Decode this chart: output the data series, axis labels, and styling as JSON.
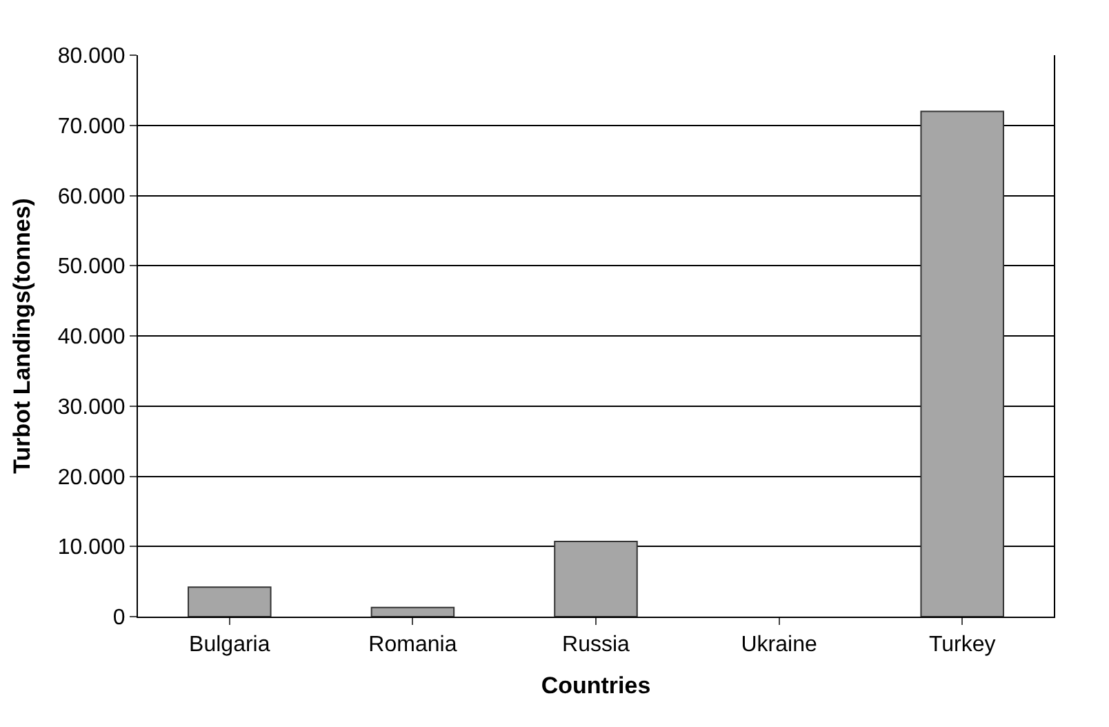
{
  "chart_data": {
    "type": "bar",
    "xlabel": "Countries",
    "ylabel": "Turbot Landings(tonnes)",
    "categories": [
      "Bulgaria",
      "Romania",
      "Russia",
      "Ukraine",
      "Turkey"
    ],
    "values": [
      4200,
      1300,
      10700,
      null,
      72000
    ],
    "color": "#a6a6a6",
    "ylim": [
      0,
      80000
    ],
    "yticks": [
      {
        "value": 0,
        "label": "0"
      },
      {
        "value": 10000,
        "label": "10.000"
      },
      {
        "value": 20000,
        "label": "20.000"
      },
      {
        "value": 30000,
        "label": "30.000"
      },
      {
        "value": 40000,
        "label": "40.000"
      },
      {
        "value": 50000,
        "label": "50.000"
      },
      {
        "value": 60000,
        "label": "60.000"
      },
      {
        "value": 70000,
        "label": "70.000"
      },
      {
        "value": 80000,
        "label": "80.000"
      }
    ],
    "grid": "y",
    "legend": false
  }
}
